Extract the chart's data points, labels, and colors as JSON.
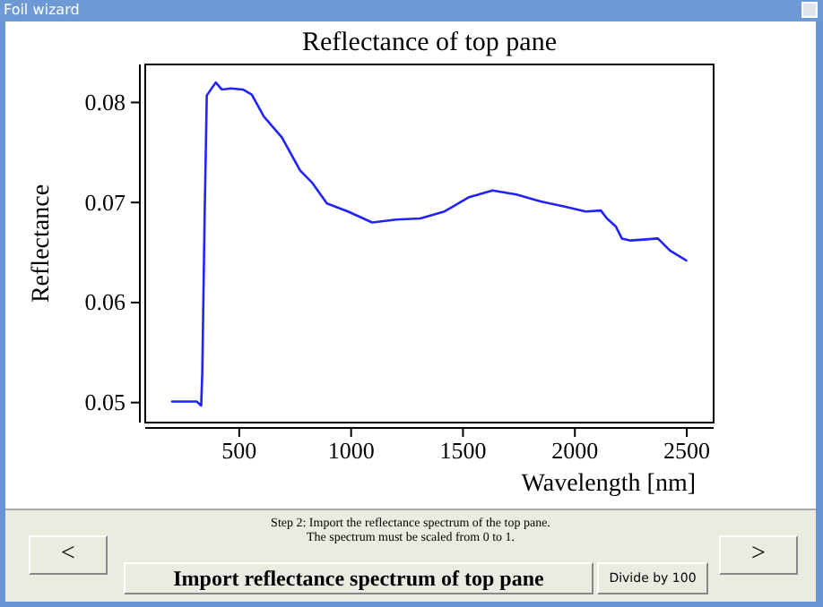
{
  "chart_data": {
    "type": "line",
    "title": "Reflectance of top pane",
    "xlabel": "Wavelength [nm]",
    "ylabel": "Reflectance",
    "x": [
      200,
      310,
      330,
      335,
      345,
      355,
      395,
      422,
      462,
      516,
      556,
      610,
      691,
      772,
      825,
      892,
      986,
      1094,
      1202,
      1309,
      1417,
      1524,
      1632,
      1739,
      1847,
      1954,
      2048,
      2116,
      2143,
      2183,
      2210,
      2250,
      2371,
      2425,
      2498
    ],
    "series": [
      {
        "color": "#2222ff",
        "values": [
          0.0501,
          0.0501,
          0.0497,
          0.053,
          0.068,
          0.0807,
          0.082,
          0.0813,
          0.0814,
          0.0813,
          0.0808,
          0.0786,
          0.0765,
          0.0732,
          0.072,
          0.0699,
          0.0691,
          0.068,
          0.0683,
          0.0684,
          0.0691,
          0.0705,
          0.0712,
          0.0708,
          0.0701,
          0.0696,
          0.0691,
          0.0692,
          0.0684,
          0.0676,
          0.0664,
          0.0662,
          0.0664,
          0.0652,
          0.0642
        ]
      }
    ],
    "xlim": [
      80,
      2620
    ],
    "ylim": [
      0.048,
      0.0838
    ],
    "xticks": [
      500,
      1000,
      1500,
      2000,
      2500
    ],
    "yticks": [
      0.05,
      0.06,
      0.07,
      0.08
    ],
    "grid": false,
    "marker": "none",
    "line_style": "solid",
    "annotations": [
      "Foil wizard",
      "Step 2: Import the reflectance spectrum of the top pane.",
      "The spectrum must be scaled from 0 to 1.",
      "<",
      "Import reflectance spectrum of top pane",
      "Divide by 100",
      ">"
    ]
  }
}
